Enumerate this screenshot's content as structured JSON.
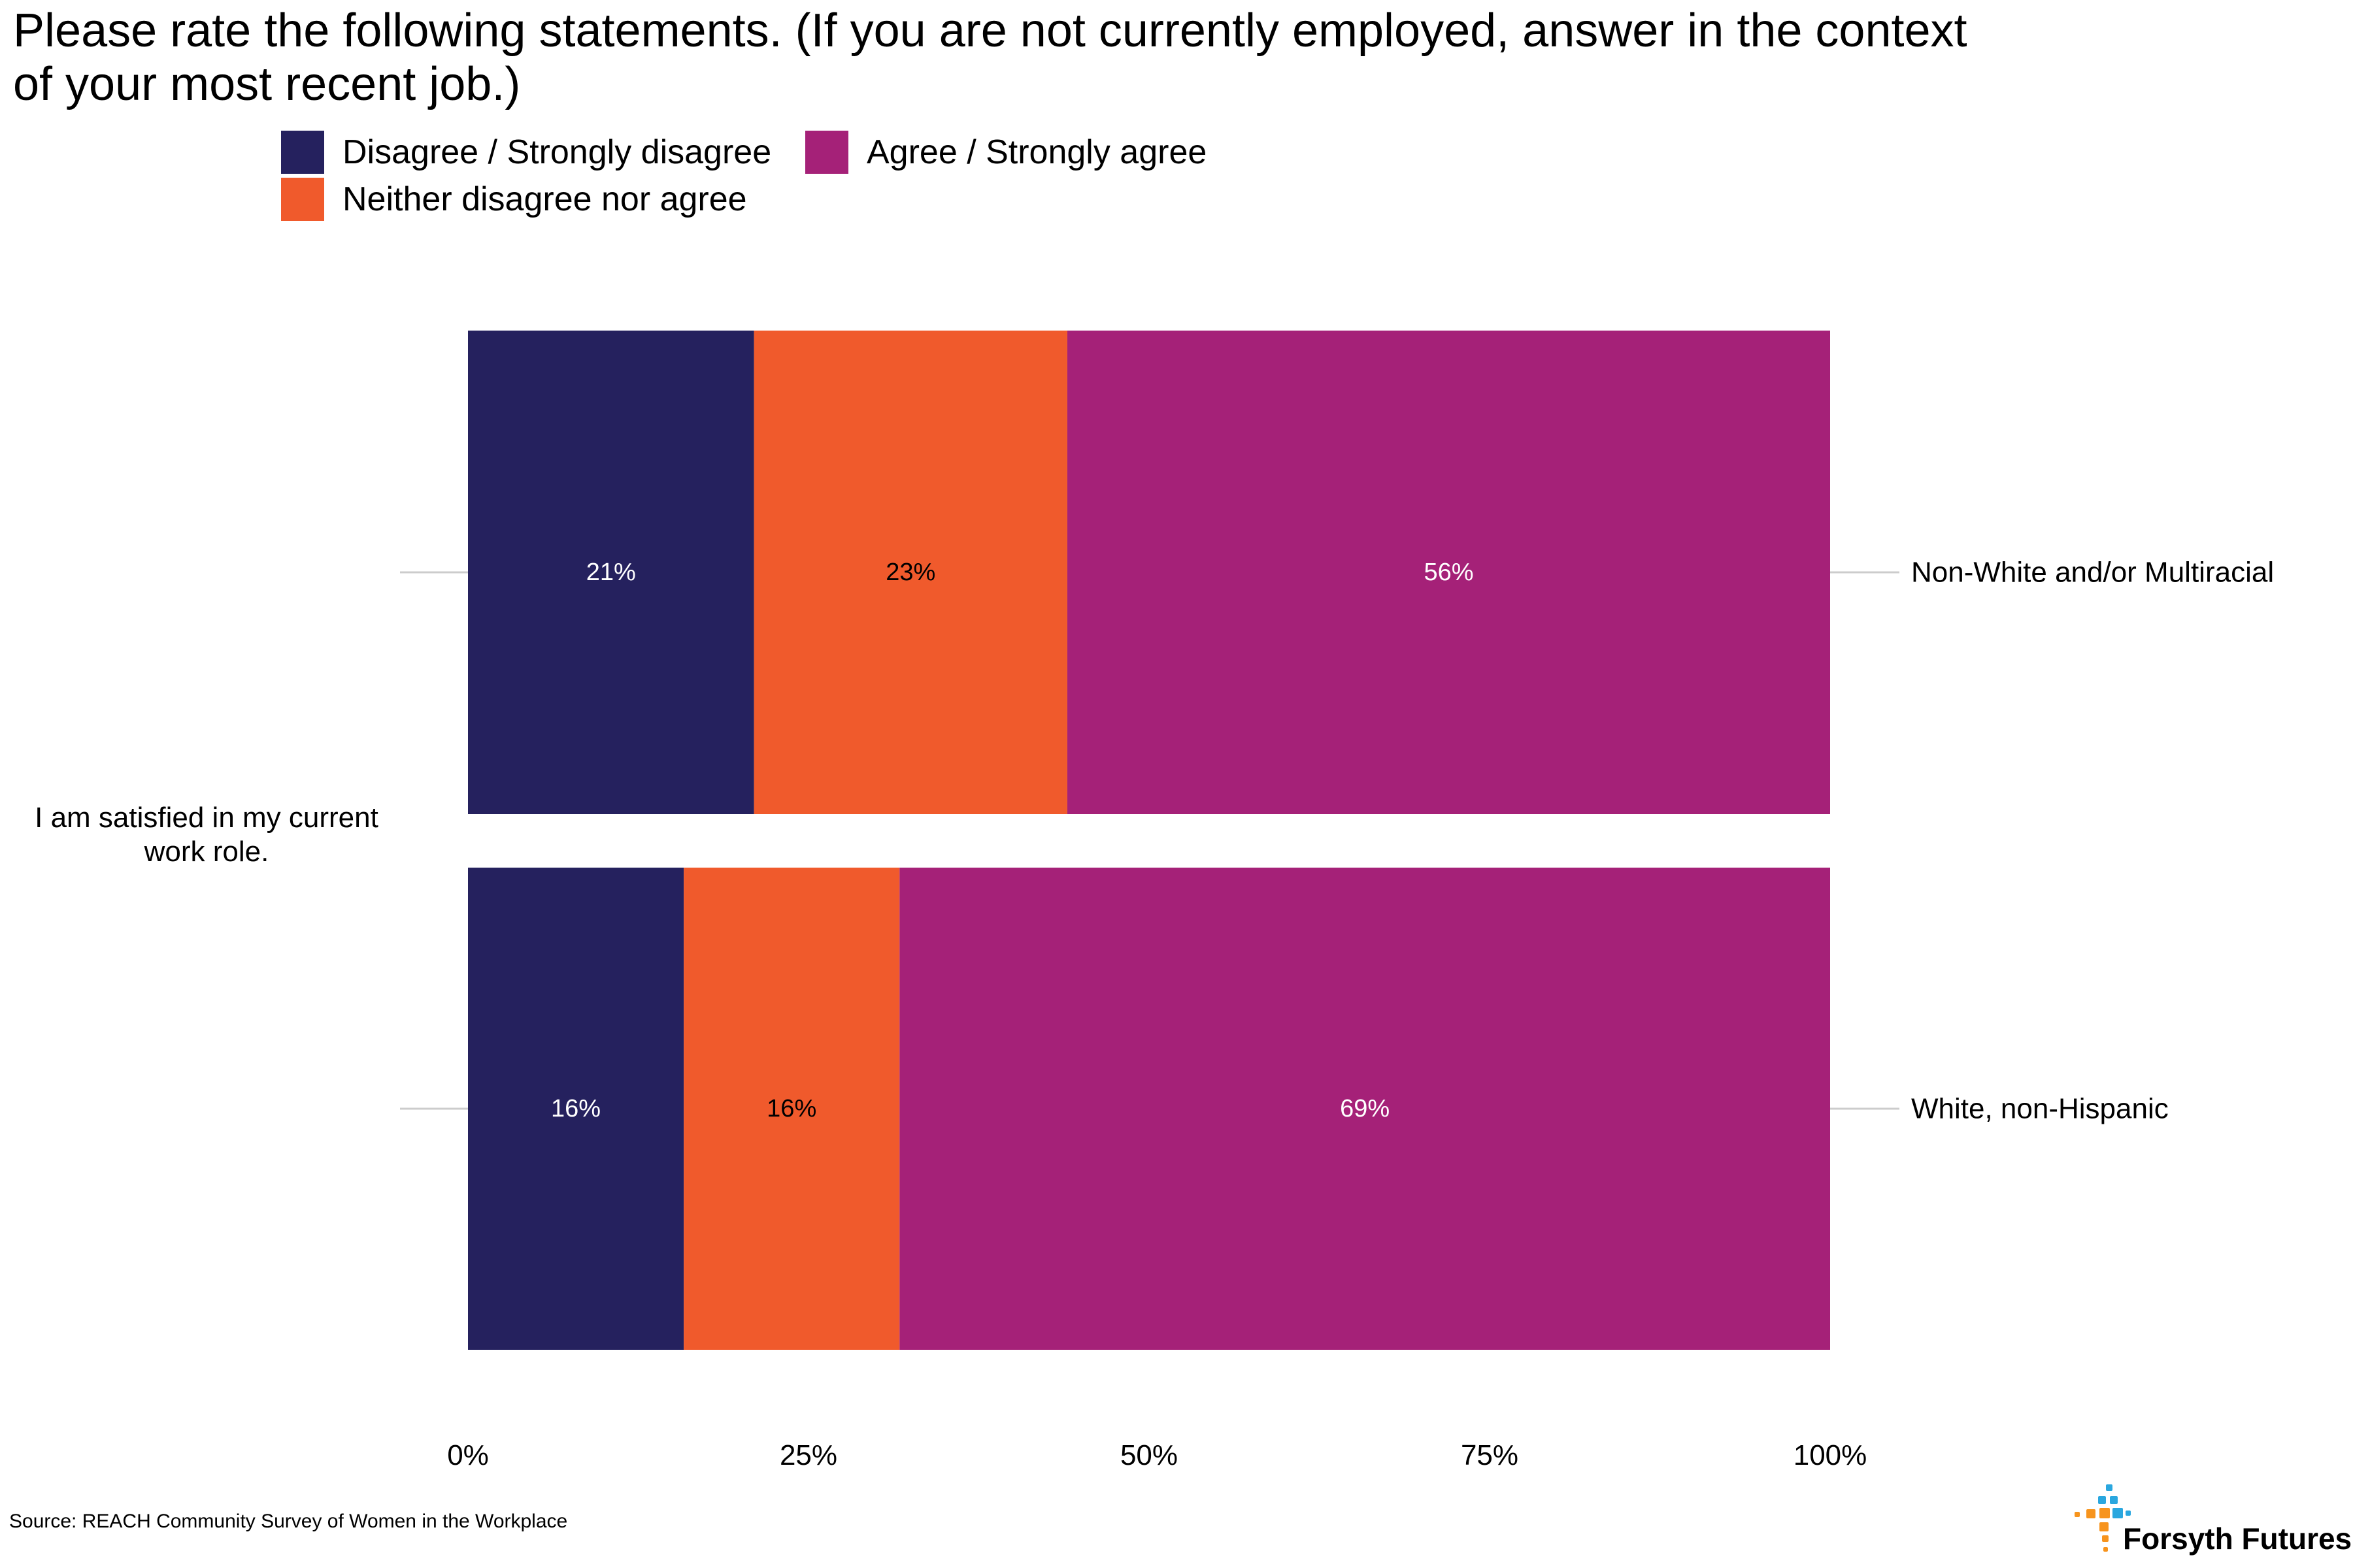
{
  "title": "Please rate the following statements. (If you are not currently employed, answer in the context of your most recent job.)",
  "legend": [
    {
      "label": "Disagree / Strongly disagree",
      "color": "#25215E"
    },
    {
      "label": "Agree / Strongly agree",
      "color": "#A52178"
    },
    {
      "label": "Neither disagree nor agree",
      "color": "#F05A2C"
    }
  ],
  "source": "Source: REACH Community Survey of Women in the Workplace",
  "logo": {
    "text": "Forsyth Futures",
    "accent_colors": [
      "#2AA7DF",
      "#F7941D"
    ]
  },
  "chart_data": {
    "type": "bar",
    "orientation": "horizontal",
    "stacked": true,
    "question": "I am satisfied in my current work role.",
    "categories": [
      "Non-White and/or Multiracial",
      "White, non-Hispanic"
    ],
    "series": [
      {
        "name": "Disagree / Strongly disagree",
        "values": [
          21,
          16
        ],
        "labels": [
          "21%",
          "16%"
        ],
        "color": "#25215E",
        "label_color": "#ffffff"
      },
      {
        "name": "Neither disagree nor agree",
        "values": [
          23,
          16
        ],
        "labels": [
          "23%",
          "16%"
        ],
        "color": "#F05A2C",
        "label_color": "#000000"
      },
      {
        "name": "Agree / Strongly agree",
        "values": [
          56,
          69
        ],
        "labels": [
          "56%",
          "69%"
        ],
        "color": "#A52178",
        "label_color": "#ffffff"
      }
    ],
    "bar_totals_pct": [
      100,
      100
    ],
    "xticks": [
      "0%",
      "25%",
      "50%",
      "75%",
      "100%"
    ],
    "xlim": [
      0,
      100
    ],
    "legend_position": "top",
    "grid": false
  }
}
